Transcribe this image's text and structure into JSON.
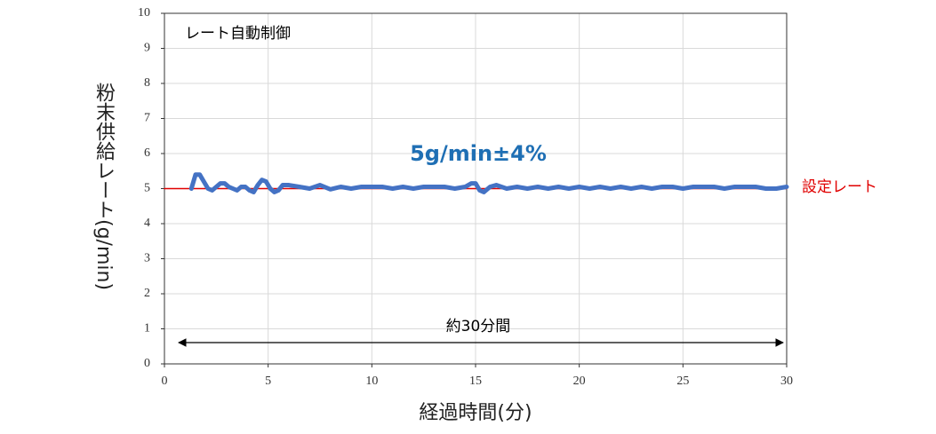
{
  "chart_data": {
    "type": "line",
    "x_label": "経過時間(分)",
    "y_label": "粉末供給レート(g/min)",
    "annotations": [
      "レート自動制御",
      "5g/min±4%",
      "約30分間"
    ],
    "xlim": [
      0,
      30
    ],
    "xticks": [
      0,
      5,
      10,
      15,
      20,
      25,
      30
    ],
    "ylim": [
      0,
      10
    ],
    "yticks": [
      0,
      1,
      2,
      3,
      4,
      5,
      6,
      7,
      8,
      9,
      10
    ],
    "grid": true,
    "series": [
      {
        "name": null,
        "color": "#4472c4",
        "x": [
          1.3,
          1.5,
          1.7,
          1.9,
          2.1,
          2.3,
          2.5,
          2.7,
          2.9,
          3.1,
          3.3,
          3.5,
          3.7,
          3.9,
          4.1,
          4.3,
          4.5,
          4.7,
          4.9,
          5.1,
          5.3,
          5.5,
          5.7,
          6,
          6.5,
          7,
          7.5,
          8,
          8.5,
          9,
          9.5,
          10,
          10.5,
          11,
          11.5,
          12,
          12.5,
          13,
          13.5,
          14,
          14.5,
          14.8,
          15,
          15.2,
          15.4,
          15.7,
          16,
          16.5,
          17,
          17.5,
          18,
          18.5,
          19,
          19.5,
          20,
          20.5,
          21,
          21.5,
          22,
          22.5,
          23,
          23.5,
          24,
          24.5,
          25,
          25.5,
          26,
          26.5,
          27,
          27.5,
          28,
          28.5,
          29,
          29.5,
          30
        ],
        "values": [
          5.0,
          5.4,
          5.4,
          5.2,
          5.0,
          4.95,
          5.05,
          5.15,
          5.15,
          5.05,
          5.0,
          4.95,
          5.05,
          5.05,
          4.95,
          4.9,
          5.1,
          5.25,
          5.2,
          5.0,
          4.9,
          4.95,
          5.1,
          5.1,
          5.05,
          5.0,
          5.1,
          4.98,
          5.05,
          5.0,
          5.05,
          5.05,
          5.05,
          5.0,
          5.05,
          5.0,
          5.05,
          5.05,
          5.05,
          5.0,
          5.05,
          5.15,
          5.15,
          4.95,
          4.9,
          5.05,
          5.1,
          5.0,
          5.05,
          5.0,
          5.05,
          5.0,
          5.05,
          5.0,
          5.05,
          5.0,
          5.05,
          5.0,
          5.05,
          5.0,
          5.05,
          5.0,
          5.05,
          5.05,
          5.0,
          5.05,
          5.05,
          5.05,
          5.0,
          5.05,
          5.05,
          5.05,
          5.0,
          5.0,
          5.05
        ]
      },
      {
        "name": "設定レート",
        "color": "#e00000",
        "x": [
          0,
          30
        ],
        "values": [
          5,
          5
        ]
      }
    ]
  }
}
